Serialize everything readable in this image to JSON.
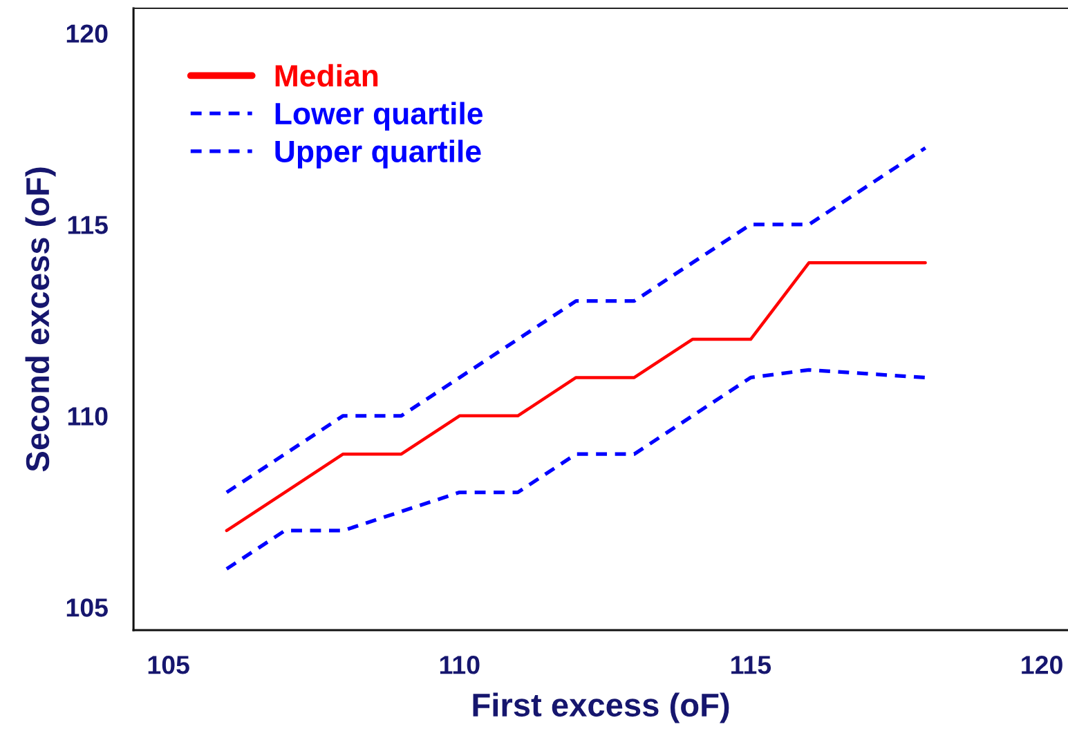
{
  "chart_data": {
    "type": "line",
    "xlabel": "First excess (oF)",
    "ylabel": "Second excess (oF)",
    "x": [
      106,
      107,
      108,
      109,
      110,
      111,
      112,
      113,
      114,
      115,
      116,
      117,
      118
    ],
    "series": [
      {
        "name": "Median",
        "color": "#ff0000",
        "line_style": "solid",
        "values": [
          107,
          108,
          109,
          109,
          110,
          110,
          111,
          111,
          112,
          112,
          114,
          114,
          114
        ]
      },
      {
        "name": "Lower quartile",
        "color": "#0000ff",
        "line_style": "dashed",
        "values": [
          106,
          107,
          107,
          107.5,
          108,
          108,
          109,
          109,
          110,
          111,
          111.2,
          111.1,
          111
        ]
      },
      {
        "name": "Upper quartile",
        "color": "#0000ff",
        "line_style": "dashed",
        "values": [
          108,
          109,
          110,
          110,
          111,
          112,
          113,
          113,
          114,
          115,
          115,
          116,
          117
        ]
      }
    ],
    "xlim": [
      104.4,
      120.45
    ],
    "ylim": [
      104.4,
      120.65
    ],
    "xticks": [
      105,
      110,
      115,
      120
    ],
    "yticks": [
      105,
      110,
      115,
      120
    ],
    "legend": "top left"
  }
}
